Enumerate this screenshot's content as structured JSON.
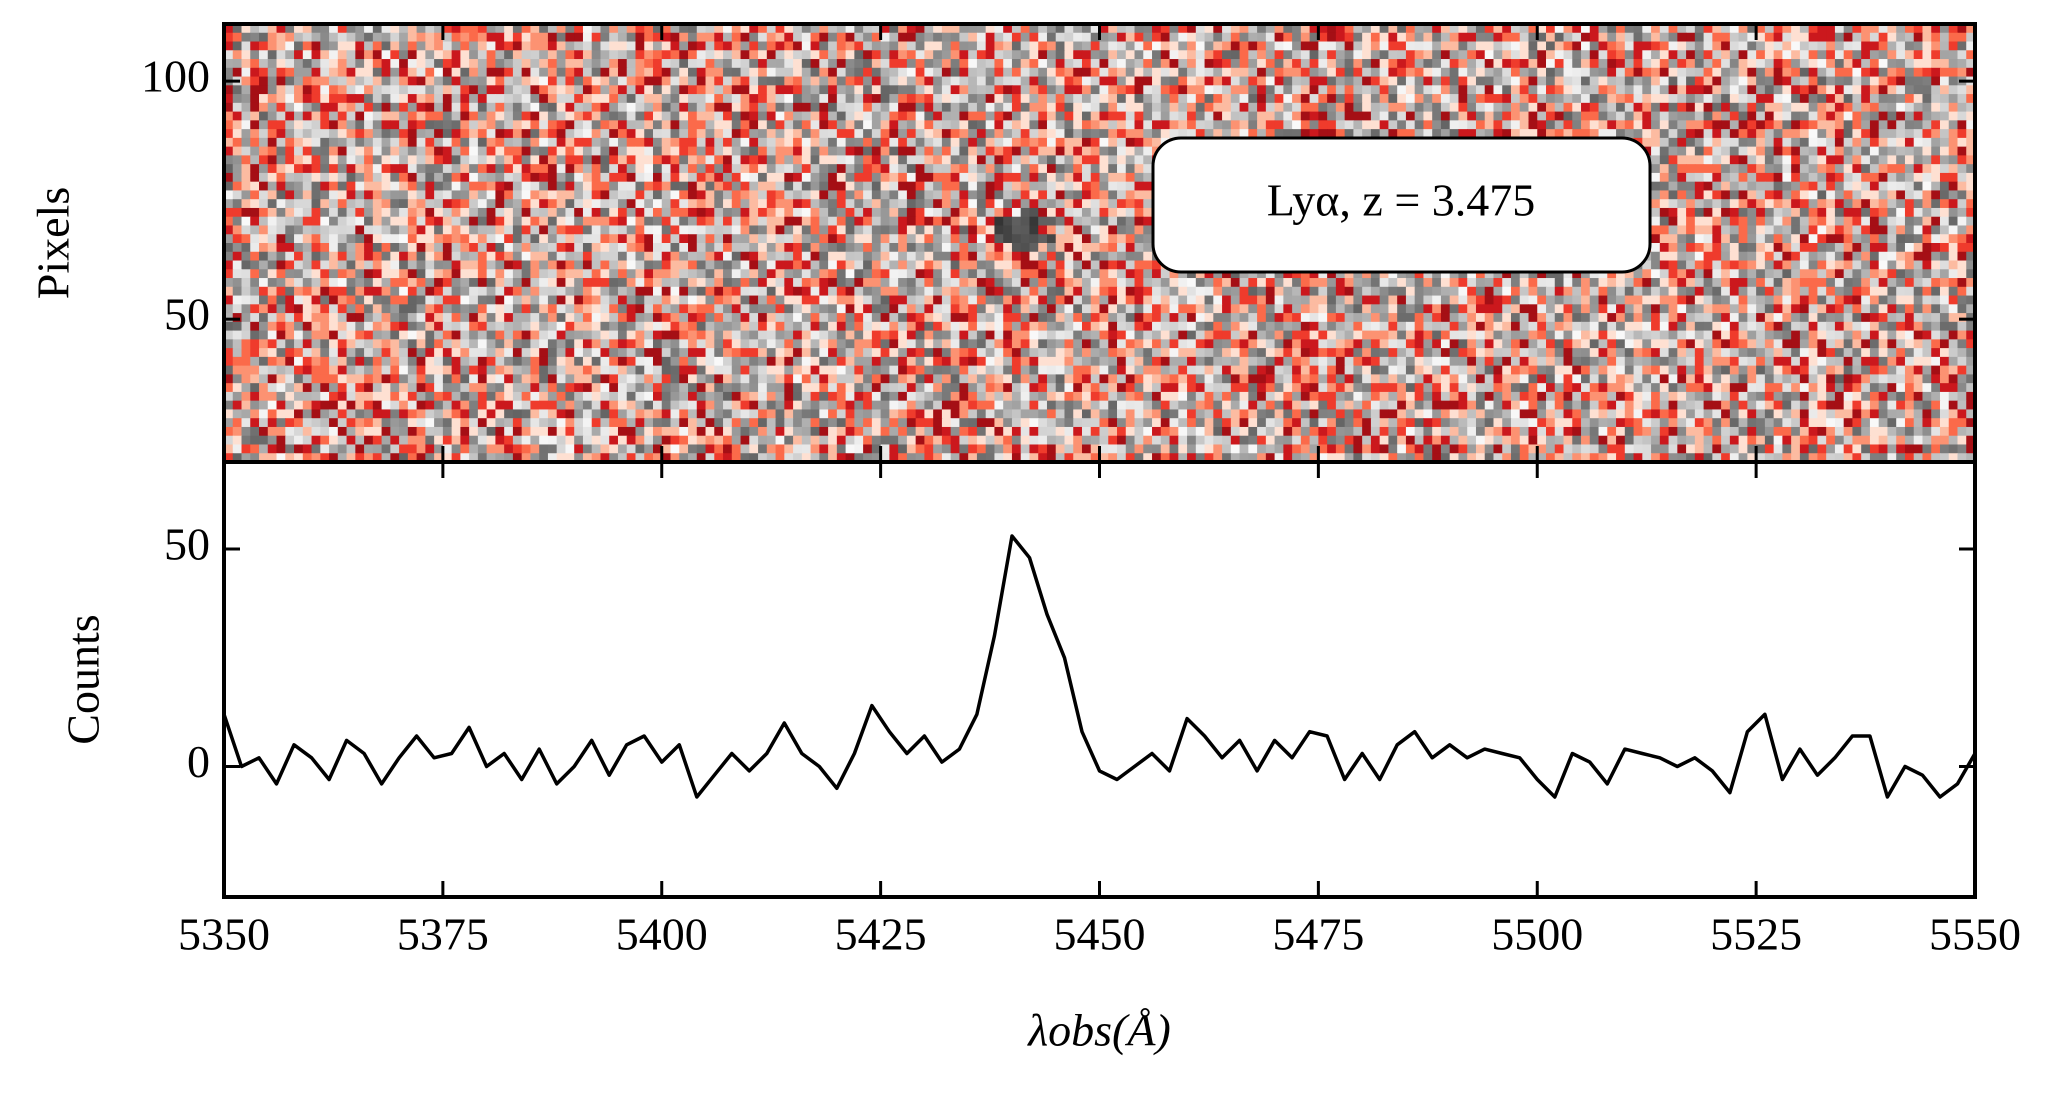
{
  "chart_data": [
    {
      "type": "image",
      "ylabel": "Pixels",
      "ylim": [
        20,
        112
      ],
      "yticks": [
        50,
        100
      ],
      "xlim": [
        5350,
        5550
      ],
      "annotation": "Lyα, z = 3.475"
    },
    {
      "type": "line",
      "ylabel": "Counts",
      "xlabel": "λobs(Å)",
      "ylim": [
        -30,
        70
      ],
      "yticks": [
        0,
        50
      ],
      "xlim": [
        5350,
        5550
      ],
      "xticks": [
        5350,
        5375,
        5400,
        5425,
        5450,
        5475,
        5500,
        5525,
        5550
      ],
      "x": [
        5350,
        5352,
        5354,
        5356,
        5358,
        5360,
        5362,
        5364,
        5366,
        5368,
        5370,
        5372,
        5374,
        5376,
        5378,
        5380,
        5382,
        5384,
        5386,
        5388,
        5390,
        5392,
        5394,
        5396,
        5398,
        5400,
        5402,
        5404,
        5406,
        5408,
        5410,
        5412,
        5414,
        5416,
        5418,
        5420,
        5422,
        5424,
        5426,
        5428,
        5430,
        5432,
        5434,
        5436,
        5438,
        5440,
        5442,
        5444,
        5446,
        5448,
        5450,
        5452,
        5454,
        5456,
        5458,
        5460,
        5462,
        5464,
        5466,
        5468,
        5470,
        5472,
        5474,
        5476,
        5478,
        5480,
        5482,
        5484,
        5486,
        5488,
        5490,
        5492,
        5494,
        5496,
        5498,
        5500,
        5502,
        5504,
        5506,
        5508,
        5510,
        5512,
        5514,
        5516,
        5518,
        5520,
        5522,
        5524,
        5526,
        5528,
        5530,
        5532,
        5534,
        5536,
        5538,
        5540,
        5542,
        5544,
        5546,
        5548,
        5550
      ],
      "series": [
        {
          "color": "#000000",
          "values": [
            12,
            0,
            2,
            -4,
            5,
            2,
            -3,
            6,
            3,
            -4,
            2,
            7,
            2,
            3,
            9,
            0,
            3,
            -3,
            4,
            -4,
            0,
            6,
            -2,
            5,
            7,
            1,
            5,
            -7,
            -2,
            3,
            -1,
            3,
            10,
            3,
            0,
            -5,
            3,
            14,
            8,
            3,
            7,
            1,
            4,
            12,
            30,
            53,
            48,
            35,
            25,
            8,
            -1,
            -3,
            0,
            3,
            -1,
            11,
            7,
            2,
            6,
            -1,
            6,
            2,
            8,
            7,
            -3,
            3,
            -3,
            5,
            8,
            2,
            5,
            2,
            4,
            3,
            2,
            -3,
            -7,
            3,
            1,
            -4,
            4,
            3,
            2,
            0,
            2,
            -1,
            -6,
            8,
            12,
            -3,
            4,
            -2,
            2,
            7,
            7,
            -7,
            0,
            -2,
            -7,
            -4,
            3
          ]
        }
      ]
    }
  ]
}
